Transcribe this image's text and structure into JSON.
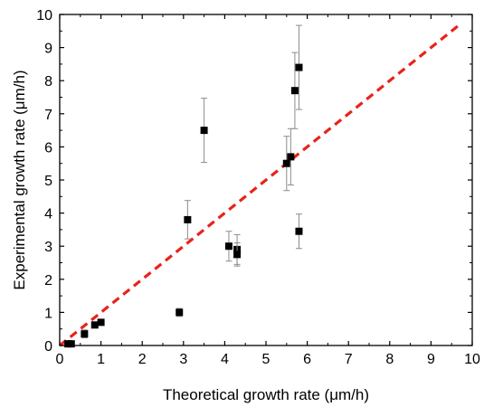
{
  "chart_data": {
    "type": "scatter",
    "xlabel": "Theoretical growth rate (μm/h)",
    "ylabel": "Experimental growth rate (μm/h)",
    "xlim": [
      0,
      10
    ],
    "ylim": [
      0,
      10
    ],
    "xticks": [
      "0",
      "1",
      "2",
      "3",
      "4",
      "5",
      "6",
      "7",
      "8",
      "9",
      "10"
    ],
    "yticks": [
      "0",
      "1",
      "2",
      "3",
      "4",
      "5",
      "6",
      "7",
      "8",
      "9",
      "10"
    ],
    "grid": false,
    "legend": "none",
    "points": [
      {
        "x": 0.2,
        "y": 0.05,
        "err": 0.05
      },
      {
        "x": 0.28,
        "y": 0.05,
        "err": 0.05
      },
      {
        "x": 0.6,
        "y": 0.35,
        "err": 0.12
      },
      {
        "x": 0.85,
        "y": 0.62,
        "err": 0.08
      },
      {
        "x": 1.0,
        "y": 0.7,
        "err": 0.06
      },
      {
        "x": 2.9,
        "y": 1.0,
        "err": 0.12
      },
      {
        "x": 3.1,
        "y": 3.8,
        "err": 0.58
      },
      {
        "x": 3.5,
        "y": 6.5,
        "err": 0.97
      },
      {
        "x": 4.1,
        "y": 3.0,
        "err": 0.45
      },
      {
        "x": 4.3,
        "y": 2.9,
        "err": 0.45
      },
      {
        "x": 4.3,
        "y": 2.75,
        "err": 0.35
      },
      {
        "x": 5.5,
        "y": 5.5,
        "err": 0.82
      },
      {
        "x": 5.6,
        "y": 5.7,
        "err": 0.85
      },
      {
        "x": 5.7,
        "y": 7.7,
        "err": 1.15
      },
      {
        "x": 5.8,
        "y": 8.4,
        "err": 1.27
      },
      {
        "x": 5.8,
        "y": 3.45,
        "err": 0.52
      }
    ],
    "reference_line": {
      "style": "dashed",
      "color": "#e8231c",
      "x": [
        0,
        9.65
      ],
      "y": [
        0,
        9.65
      ]
    },
    "marker_color": "#000000",
    "errorbar_color": "#8c8c8c",
    "frame_color": "#000000"
  }
}
